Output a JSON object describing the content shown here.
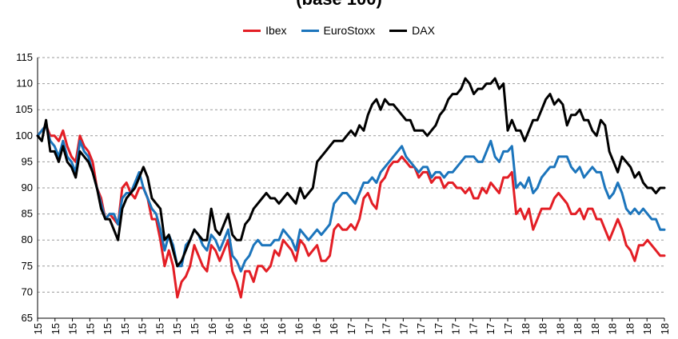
{
  "chart_data": {
    "type": "line",
    "title": "(base 100)",
    "xlabel": "",
    "ylabel": "",
    "ylim": [
      65,
      115
    ],
    "yticks": [
      65,
      70,
      75,
      80,
      85,
      90,
      95,
      100,
      105,
      110,
      115
    ],
    "xtick_labels": [
      "15",
      "15",
      "15",
      "15",
      "15",
      "15",
      "15",
      "15",
      "15",
      "15",
      "16",
      "16",
      "16",
      "16",
      "16",
      "16",
      "16",
      "16",
      "17",
      "17",
      "17",
      "17",
      "17",
      "17",
      "17",
      "17",
      "17",
      "17",
      "18",
      "18",
      "18",
      "18",
      "18",
      "18",
      "18",
      "18",
      "18"
    ],
    "grid": true,
    "legend": {
      "position": "top-center"
    },
    "series": [
      {
        "name": "Ibex",
        "color": "#e31e25",
        "values": [
          100,
          101,
          102,
          100,
          100,
          99,
          101,
          98,
          96,
          95,
          100,
          98,
          97,
          95,
          90,
          88,
          84,
          85,
          84,
          83,
          90,
          91,
          89,
          88,
          90,
          90,
          88,
          84,
          84,
          80,
          75,
          78,
          75,
          69,
          72,
          73,
          75,
          79,
          77,
          75,
          74,
          79,
          78,
          76,
          78,
          80,
          74,
          72,
          69,
          74,
          74,
          72,
          75,
          75,
          74,
          75,
          78,
          77,
          80,
          79,
          78,
          76,
          80,
          79,
          77,
          78,
          79,
          76,
          76,
          77,
          82,
          83,
          82,
          82,
          83,
          82,
          84,
          88,
          89,
          87,
          86,
          91,
          92,
          94,
          95,
          95,
          96,
          95,
          94,
          94,
          92,
          93,
          93,
          91,
          92,
          92,
          90,
          91,
          91,
          90,
          90,
          89,
          90,
          88,
          88,
          90,
          89,
          91,
          90,
          89,
          92,
          92,
          93,
          85,
          86,
          84,
          86,
          82,
          84,
          86,
          86,
          86,
          88,
          89,
          88,
          87,
          85,
          85,
          86,
          84,
          86,
          86,
          84,
          84,
          82,
          80,
          82,
          84,
          82,
          79,
          78,
          76,
          79,
          79,
          80,
          79,
          78,
          77,
          77
        ]
      },
      {
        "name": "EuroStoxx",
        "color": "#1c75bc",
        "values": [
          100,
          101,
          102,
          99,
          98,
          96,
          99,
          96,
          95,
          93,
          99,
          97,
          96,
          93,
          90,
          87,
          84,
          85,
          85,
          83,
          88,
          89,
          89,
          91,
          93,
          90,
          88,
          86,
          85,
          82,
          78,
          81,
          79,
          75,
          75,
          79,
          80,
          82,
          81,
          79,
          78,
          81,
          80,
          78,
          80,
          82,
          77,
          76,
          74,
          76,
          77,
          79,
          80,
          79,
          79,
          79,
          80,
          80,
          82,
          81,
          80,
          78,
          82,
          81,
          80,
          81,
          82,
          81,
          82,
          83,
          87,
          88,
          89,
          89,
          88,
          87,
          89,
          91,
          91,
          92,
          91,
          93,
          94,
          95,
          96,
          97,
          98,
          96,
          95,
          94,
          93,
          94,
          94,
          92,
          93,
          93,
          92,
          93,
          93,
          94,
          95,
          96,
          96,
          96,
          95,
          95,
          97,
          99,
          96,
          95,
          97,
          97,
          98,
          90,
          91,
          90,
          92,
          89,
          90,
          92,
          93,
          94,
          94,
          96,
          96,
          96,
          94,
          93,
          94,
          92,
          93,
          94,
          93,
          93,
          90,
          88,
          89,
          91,
          89,
          86,
          85,
          86,
          85,
          86,
          85,
          84,
          84,
          82,
          82
        ]
      },
      {
        "name": "DAX",
        "color": "#000000",
        "values": [
          100,
          99,
          103,
          97,
          97,
          95,
          98,
          95,
          94,
          92,
          97,
          96,
          95,
          93,
          90,
          86,
          84,
          84,
          82,
          80,
          86,
          88,
          89,
          90,
          92,
          94,
          92,
          88,
          87,
          86,
          80,
          81,
          78,
          75,
          76,
          78,
          80,
          82,
          81,
          80,
          80,
          86,
          82,
          81,
          83,
          85,
          81,
          80,
          80,
          83,
          84,
          86,
          87,
          88,
          89,
          88,
          88,
          87,
          88,
          89,
          88,
          87,
          90,
          88,
          89,
          90,
          95,
          96,
          97,
          98,
          99,
          99,
          99,
          100,
          101,
          100,
          102,
          101,
          104,
          106,
          107,
          105,
          107,
          106,
          106,
          105,
          104,
          103,
          103,
          101,
          101,
          101,
          100,
          101,
          102,
          104,
          105,
          107,
          108,
          108,
          109,
          111,
          110,
          108,
          109,
          109,
          110,
          110,
          111,
          109,
          110,
          101,
          103,
          101,
          101,
          99,
          101,
          103,
          103,
          105,
          107,
          108,
          106,
          107,
          106,
          102,
          104,
          104,
          105,
          103,
          103,
          101,
          100,
          103,
          102,
          97,
          95,
          93,
          96,
          95,
          94,
          92,
          93,
          91,
          90,
          90,
          89,
          90,
          90
        ]
      }
    ]
  }
}
